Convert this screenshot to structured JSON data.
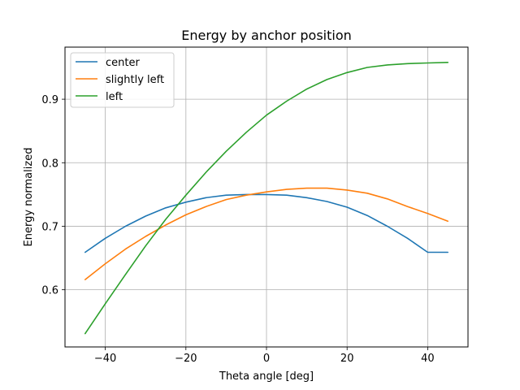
{
  "chart_data": {
    "type": "line",
    "title": "Energy by anchor position",
    "xlabel": "Theta angle [deg]",
    "ylabel": "Energy normalized",
    "xlim": [
      -50,
      50
    ],
    "ylim": [
      0.51,
      0.982
    ],
    "xticks": [
      -40,
      -20,
      0,
      20,
      40
    ],
    "yticks": [
      0.6,
      0.7,
      0.8,
      0.9
    ],
    "grid": true,
    "legend_position": "upper-left",
    "x": [
      -45,
      -40,
      -35,
      -30,
      -25,
      -20,
      -15,
      -10,
      -5,
      0,
      5,
      10,
      15,
      20,
      25,
      30,
      35,
      40,
      45
    ],
    "series": [
      {
        "name": "center",
        "color": "#1f77b4",
        "values": [
          0.659,
          0.681,
          0.7,
          0.716,
          0.729,
          0.738,
          0.745,
          0.749,
          0.75,
          0.75,
          0.749,
          0.745,
          0.739,
          0.73,
          0.717,
          0.7,
          0.681,
          0.659,
          0.659
        ]
      },
      {
        "name": "slightly left",
        "color": "#ff7f0e",
        "values": [
          0.616,
          0.641,
          0.664,
          0.684,
          0.702,
          0.718,
          0.731,
          0.742,
          0.749,
          0.754,
          0.758,
          0.76,
          0.76,
          0.757,
          0.752,
          0.743,
          0.731,
          0.72,
          0.708
        ]
      },
      {
        "name": "left",
        "color": "#2ca02c",
        "values": [
          0.531,
          0.578,
          0.624,
          0.669,
          0.711,
          0.749,
          0.785,
          0.818,
          0.848,
          0.875,
          0.897,
          0.916,
          0.931,
          0.942,
          0.95,
          0.954,
          0.956,
          0.957,
          0.958
        ]
      }
    ]
  }
}
